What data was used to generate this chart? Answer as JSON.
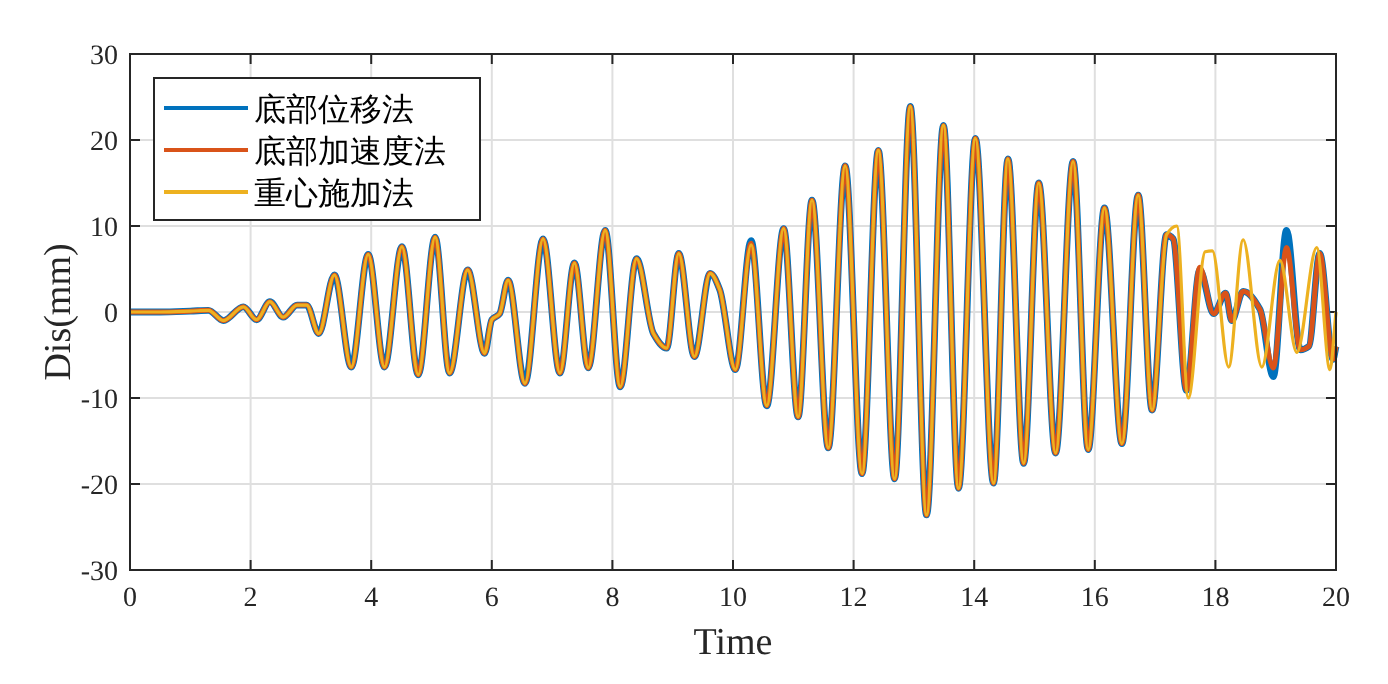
{
  "chart_data": {
    "type": "line",
    "xlabel": "Time",
    "ylabel": "Dis(mm)",
    "xlim": [
      0,
      20
    ],
    "ylim": [
      -30,
      30
    ],
    "xticks": [
      0,
      2,
      4,
      6,
      8,
      10,
      12,
      14,
      16,
      18,
      20
    ],
    "yticks": [
      -30,
      -20,
      -10,
      0,
      10,
      20,
      30
    ],
    "grid": true,
    "legend": "top left",
    "series": [
      {
        "name": "底部位移法",
        "color": "#0072bd",
        "x": [
          0,
          0.5,
          1.0,
          1.3,
          1.55,
          1.88,
          2.1,
          2.32,
          2.54,
          2.77,
          2.93,
          3.13,
          3.39,
          3.67,
          3.95,
          4.22,
          4.51,
          4.78,
          5.06,
          5.3,
          5.6,
          5.88,
          6.0,
          6.13,
          6.27,
          6.55,
          6.85,
          7.13,
          7.37,
          7.6,
          7.88,
          8.13,
          8.4,
          8.68,
          8.9,
          9.1,
          9.36,
          9.62,
          9.78,
          10.04,
          10.3,
          10.56,
          10.84,
          11.08,
          11.31,
          11.58,
          11.86,
          12.14,
          12.41,
          12.68,
          12.94,
          13.21,
          13.49,
          13.74,
          14.02,
          14.32,
          14.56,
          14.82,
          15.07,
          15.35,
          15.64,
          15.89,
          16.16,
          16.45,
          16.72,
          16.95,
          17.19,
          17.3,
          17.52,
          17.74,
          17.97,
          18.17,
          18.27,
          18.46,
          18.74,
          18.96,
          19.18,
          19.41,
          19.55,
          19.73,
          19.95,
          20
        ],
        "values": [
          0,
          0,
          0.1,
          0.2,
          -1,
          0.6,
          -0.9,
          1.2,
          -0.6,
          0.8,
          0.8,
          -2.5,
          4.3,
          -6.4,
          6.7,
          -6.4,
          7.6,
          -7.3,
          8.7,
          -7.1,
          4.9,
          -4.8,
          -0.9,
          -0.2,
          3.7,
          -8.3,
          8.5,
          -7.1,
          5.7,
          -6.5,
          9.5,
          -8.7,
          6.2,
          -2.5,
          -4.2,
          6.8,
          -5.2,
          4.5,
          2.6,
          -6.7,
          8.3,
          -10.9,
          9.7,
          -12.2,
          13.0,
          -15.8,
          17.0,
          -18.8,
          18.8,
          -19.4,
          23.9,
          -23.6,
          21.7,
          -20.5,
          20.2,
          -19.9,
          17.8,
          -17.6,
          15.0,
          -16.4,
          17.5,
          -16.0,
          12.1,
          -15.3,
          13.6,
          -11.4,
          9.0,
          8.5,
          -9.1,
          4.9,
          -0.2,
          2.2,
          -1.0,
          2.4,
          0.3,
          -7.5,
          9.5,
          -4.4,
          -4.0,
          6.8,
          -5.5,
          -4
        ]
      },
      {
        "name": "底部加速度法",
        "color": "#d95319",
        "x": [
          0,
          0.5,
          1.0,
          1.3,
          1.55,
          1.88,
          2.1,
          2.32,
          2.54,
          2.77,
          2.93,
          3.13,
          3.39,
          3.67,
          3.95,
          4.22,
          4.51,
          4.78,
          5.06,
          5.3,
          5.6,
          5.88,
          6.0,
          6.13,
          6.27,
          6.55,
          6.85,
          7.13,
          7.37,
          7.6,
          7.88,
          8.13,
          8.4,
          8.68,
          8.9,
          9.1,
          9.36,
          9.62,
          9.78,
          10.04,
          10.3,
          10.56,
          10.84,
          11.08,
          11.31,
          11.58,
          11.86,
          12.14,
          12.41,
          12.68,
          12.94,
          13.21,
          13.49,
          13.74,
          14.02,
          14.32,
          14.56,
          14.82,
          15.07,
          15.35,
          15.64,
          15.89,
          16.16,
          16.45,
          16.72,
          16.95,
          17.19,
          17.3,
          17.52,
          17.74,
          17.97,
          18.17,
          18.27,
          18.46,
          18.74,
          18.96,
          19.18,
          19.41,
          19.55,
          19.73,
          19.95,
          20
        ],
        "values": [
          0,
          0,
          0.1,
          0.2,
          -1,
          0.6,
          -0.9,
          1.2,
          -0.6,
          0.8,
          0.8,
          -2.5,
          4.3,
          -6.4,
          6.7,
          -6.4,
          7.6,
          -7.3,
          8.7,
          -7.1,
          4.9,
          -4.8,
          -0.9,
          -0.2,
          3.7,
          -8.3,
          8.5,
          -7.1,
          5.7,
          -6.5,
          9.5,
          -8.7,
          6.2,
          -2.5,
          -4.2,
          6.8,
          -5.2,
          4.5,
          2.6,
          -6.7,
          8.0,
          -10.9,
          9.7,
          -12.2,
          13.0,
          -15.8,
          17.0,
          -18.8,
          18.8,
          -19.4,
          23.9,
          -23.6,
          21.7,
          -20.5,
          20.2,
          -19.9,
          17.8,
          -17.6,
          15.0,
          -16.4,
          17.5,
          -16.0,
          12.1,
          -15.3,
          13.6,
          -11.4,
          9.0,
          8.5,
          -9.1,
          5.2,
          -0.2,
          2.2,
          -1.0,
          2.4,
          0.3,
          -6.5,
          7.5,
          -4.4,
          -4.0,
          6.8,
          -5.5,
          -4
        ]
      },
      {
        "name": "重心施加法",
        "color": "#edb120",
        "x": [
          0,
          0.5,
          1.0,
          1.3,
          1.55,
          1.88,
          2.1,
          2.32,
          2.54,
          2.77,
          2.93,
          3.13,
          3.39,
          3.67,
          3.95,
          4.22,
          4.51,
          4.78,
          5.06,
          5.3,
          5.6,
          5.88,
          6.0,
          6.13,
          6.27,
          6.55,
          6.85,
          7.13,
          7.37,
          7.6,
          7.88,
          8.13,
          8.4,
          8.68,
          8.9,
          9.1,
          9.36,
          9.62,
          9.78,
          10.04,
          10.3,
          10.56,
          10.84,
          11.08,
          11.31,
          11.58,
          11.86,
          12.14,
          12.41,
          12.68,
          12.94,
          13.21,
          13.49,
          13.74,
          14.02,
          14.32,
          14.56,
          14.82,
          15.07,
          15.35,
          15.64,
          15.89,
          16.16,
          16.45,
          16.72,
          16.95,
          17.19,
          17.36,
          17.55,
          17.83,
          17.95,
          18.22,
          18.46,
          18.77,
          19.07,
          19.35,
          19.68,
          19.9,
          20
        ],
        "values": [
          0,
          0,
          0.1,
          0.2,
          -1,
          0.6,
          -0.9,
          1.2,
          -0.6,
          0.8,
          0.8,
          -2.5,
          4.3,
          -6.4,
          6.7,
          -6.4,
          7.6,
          -7.3,
          8.7,
          -7.1,
          4.9,
          -4.8,
          -0.9,
          -0.2,
          3.7,
          -8.3,
          8.5,
          -7.1,
          5.7,
          -6.5,
          9.5,
          -8.7,
          6.2,
          -2.5,
          -4.2,
          6.8,
          -5.2,
          4.5,
          2.6,
          -6.7,
          7.8,
          -10.9,
          9.7,
          -12.2,
          13.0,
          -15.8,
          17.0,
          -18.8,
          18.8,
          -19.4,
          23.9,
          -23.6,
          21.7,
          -20.5,
          20.2,
          -19.9,
          17.8,
          -17.6,
          15.0,
          -16.4,
          17.5,
          -16.0,
          12.1,
          -15.3,
          13.6,
          -11.4,
          9.0,
          10.0,
          -10.0,
          7.0,
          7.1,
          -6.4,
          8.4,
          -6.4,
          6.0,
          -4.7,
          7.5,
          -6.7,
          0
        ]
      }
    ]
  }
}
